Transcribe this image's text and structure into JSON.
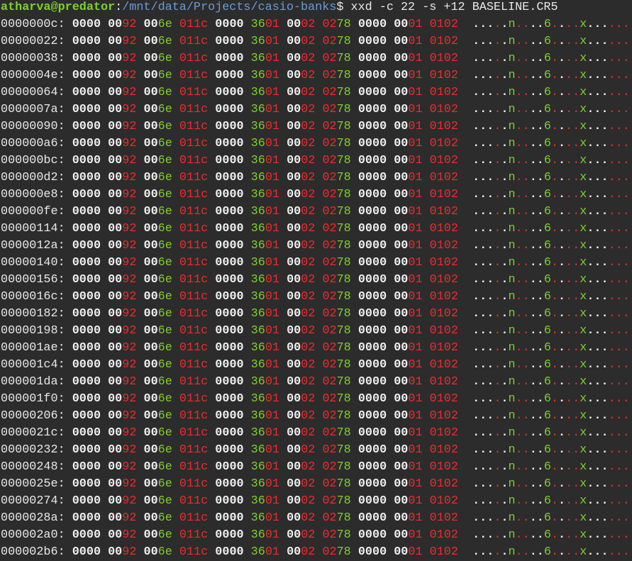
{
  "prompt": {
    "user_host": "atharva@predator",
    "separator": ":",
    "path": "/mnt/data/Projects/casio-banks",
    "symbol": "$",
    "command": " xxd -c 22 -s +12 BASELINE.CR5"
  },
  "colors": {
    "null_byte": "#f0f0f0",
    "printable": "#7fd12a",
    "non_printable": "#ef2b2b",
    "background": "#2c2c2c"
  },
  "dump": {
    "hex_groups": [
      "0000",
      "0092",
      "006e",
      "011c",
      "0000",
      "3601",
      "0002",
      "0278",
      "0000",
      "0001",
      "0102"
    ],
    "ascii": ".....n....6....x......",
    "offsets": [
      "0000000c",
      "00000022",
      "00000038",
      "0000004e",
      "00000064",
      "0000007a",
      "00000090",
      "000000a6",
      "000000bc",
      "000000d2",
      "000000e8",
      "000000fe",
      "00000114",
      "0000012a",
      "00000140",
      "00000156",
      "0000016c",
      "00000182",
      "00000198",
      "000001ae",
      "000001c4",
      "000001da",
      "000001f0",
      "00000206",
      "0000021c",
      "00000232",
      "00000248",
      "0000025e",
      "00000274",
      "0000028a",
      "000002a0",
      "000002b6"
    ]
  }
}
